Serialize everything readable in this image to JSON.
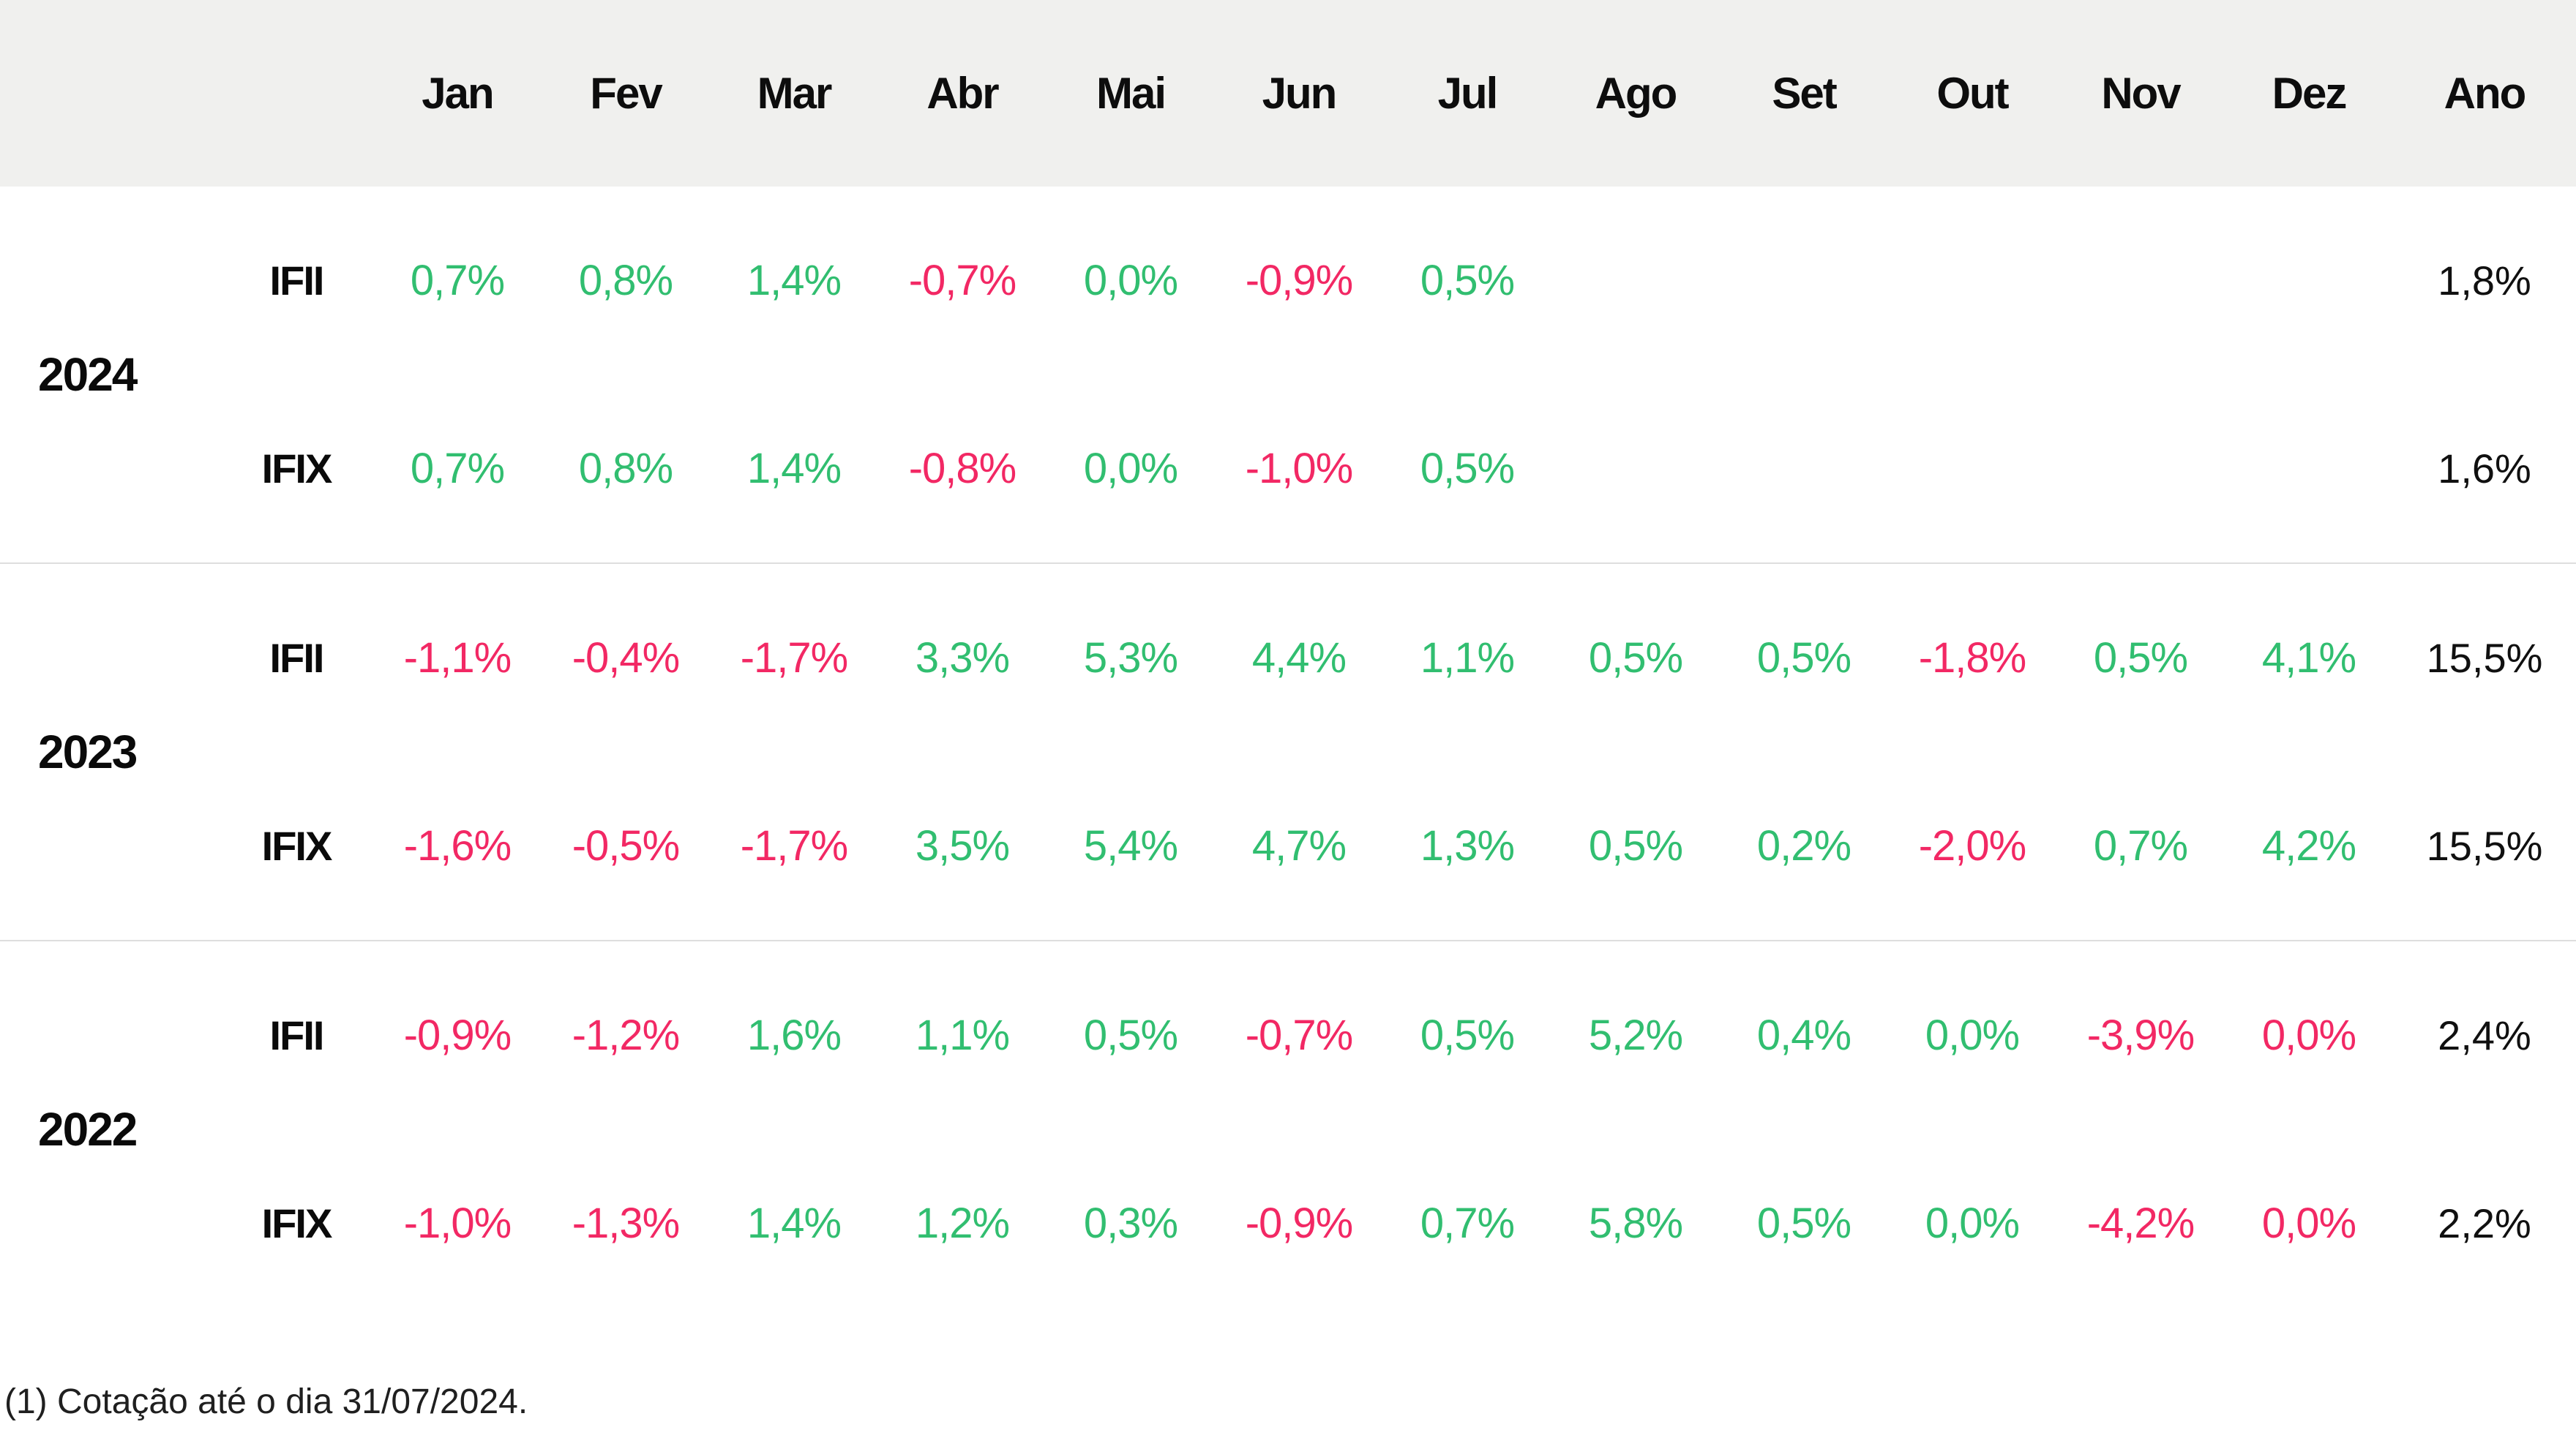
{
  "table": {
    "column_headers": [
      "Jan",
      "Fev",
      "Mar",
      "Abr",
      "Mai",
      "Jun",
      "Jul",
      "Ago",
      "Set",
      "Out",
      "Nov",
      "Dez",
      "Ano"
    ],
    "groups": [
      {
        "year": "2024",
        "rows": [
          {
            "index": "IFII",
            "cells": [
              {
                "text": "0,7%",
                "tone": "positive"
              },
              {
                "text": "0,8%",
                "tone": "positive"
              },
              {
                "text": "1,4%",
                "tone": "positive"
              },
              {
                "text": "-0,7%",
                "tone": "negative"
              },
              {
                "text": "0,0%",
                "tone": "positive"
              },
              {
                "text": "-0,9%",
                "tone": "negative"
              },
              {
                "text": "0,5%",
                "tone": "positive"
              },
              {
                "text": "",
                "tone": "none"
              },
              {
                "text": "",
                "tone": "none"
              },
              {
                "text": "",
                "tone": "none"
              },
              {
                "text": "",
                "tone": "none"
              },
              {
                "text": "",
                "tone": "none"
              }
            ],
            "annual": "1,8%"
          },
          {
            "index": "IFIX",
            "cells": [
              {
                "text": "0,7%",
                "tone": "positive"
              },
              {
                "text": "0,8%",
                "tone": "positive"
              },
              {
                "text": "1,4%",
                "tone": "positive"
              },
              {
                "text": "-0,8%",
                "tone": "negative"
              },
              {
                "text": "0,0%",
                "tone": "positive"
              },
              {
                "text": "-1,0%",
                "tone": "negative"
              },
              {
                "text": "0,5%",
                "tone": "positive"
              },
              {
                "text": "",
                "tone": "none"
              },
              {
                "text": "",
                "tone": "none"
              },
              {
                "text": "",
                "tone": "none"
              },
              {
                "text": "",
                "tone": "none"
              },
              {
                "text": "",
                "tone": "none"
              }
            ],
            "annual": "1,6%"
          }
        ]
      },
      {
        "year": "2023",
        "rows": [
          {
            "index": "IFII",
            "cells": [
              {
                "text": "-1,1%",
                "tone": "negative"
              },
              {
                "text": "-0,4%",
                "tone": "negative"
              },
              {
                "text": "-1,7%",
                "tone": "negative"
              },
              {
                "text": "3,3%",
                "tone": "positive"
              },
              {
                "text": "5,3%",
                "tone": "positive"
              },
              {
                "text": "4,4%",
                "tone": "positive"
              },
              {
                "text": "1,1%",
                "tone": "positive"
              },
              {
                "text": "0,5%",
                "tone": "positive"
              },
              {
                "text": "0,5%",
                "tone": "positive"
              },
              {
                "text": "-1,8%",
                "tone": "negative"
              },
              {
                "text": "0,5%",
                "tone": "positive"
              },
              {
                "text": "4,1%",
                "tone": "positive"
              }
            ],
            "annual": "15,5%"
          },
          {
            "index": "IFIX",
            "cells": [
              {
                "text": "-1,6%",
                "tone": "negative"
              },
              {
                "text": "-0,5%",
                "tone": "negative"
              },
              {
                "text": "-1,7%",
                "tone": "negative"
              },
              {
                "text": "3,5%",
                "tone": "positive"
              },
              {
                "text": "5,4%",
                "tone": "positive"
              },
              {
                "text": "4,7%",
                "tone": "positive"
              },
              {
                "text": "1,3%",
                "tone": "positive"
              },
              {
                "text": "0,5%",
                "tone": "positive"
              },
              {
                "text": "0,2%",
                "tone": "positive"
              },
              {
                "text": "-2,0%",
                "tone": "negative"
              },
              {
                "text": "0,7%",
                "tone": "positive"
              },
              {
                "text": "4,2%",
                "tone": "positive"
              }
            ],
            "annual": "15,5%"
          }
        ]
      },
      {
        "year": "2022",
        "rows": [
          {
            "index": "IFII",
            "cells": [
              {
                "text": "-0,9%",
                "tone": "negative"
              },
              {
                "text": "-1,2%",
                "tone": "negative"
              },
              {
                "text": "1,6%",
                "tone": "positive"
              },
              {
                "text": "1,1%",
                "tone": "positive"
              },
              {
                "text": "0,5%",
                "tone": "positive"
              },
              {
                "text": "-0,7%",
                "tone": "negative"
              },
              {
                "text": "0,5%",
                "tone": "positive"
              },
              {
                "text": "5,2%",
                "tone": "positive"
              },
              {
                "text": "0,4%",
                "tone": "positive"
              },
              {
                "text": "0,0%",
                "tone": "positive"
              },
              {
                "text": "-3,9%",
                "tone": "negative"
              },
              {
                "text": "0,0%",
                "tone": "negative"
              }
            ],
            "annual": "2,4%"
          },
          {
            "index": "IFIX",
            "cells": [
              {
                "text": "-1,0%",
                "tone": "negative"
              },
              {
                "text": "-1,3%",
                "tone": "negative"
              },
              {
                "text": "1,4%",
                "tone": "positive"
              },
              {
                "text": "1,2%",
                "tone": "positive"
              },
              {
                "text": "0,3%",
                "tone": "positive"
              },
              {
                "text": "-0,9%",
                "tone": "negative"
              },
              {
                "text": "0,7%",
                "tone": "positive"
              },
              {
                "text": "5,8%",
                "tone": "positive"
              },
              {
                "text": "0,5%",
                "tone": "positive"
              },
              {
                "text": "0,0%",
                "tone": "positive"
              },
              {
                "text": "-4,2%",
                "tone": "negative"
              },
              {
                "text": "0,0%",
                "tone": "negative"
              }
            ],
            "annual": "2,2%"
          }
        ]
      }
    ]
  },
  "footnote": "(1) Cotação até o dia 31/07/2024.",
  "colors": {
    "positive": "#31be70",
    "negative": "#f22864",
    "header_background": "#f0f0ee",
    "divider": "#dedede",
    "text": "#0d0d0d"
  },
  "chart_data": {
    "type": "table",
    "columns": [
      "Jan",
      "Fev",
      "Mar",
      "Abr",
      "Mai",
      "Jun",
      "Jul",
      "Ago",
      "Set",
      "Out",
      "Nov",
      "Dez",
      "Ano"
    ],
    "rows": [
      {
        "year": 2024,
        "index": "IFII",
        "monthly_pct": [
          0.7,
          0.8,
          1.4,
          -0.7,
          0.0,
          -0.9,
          0.5,
          null,
          null,
          null,
          null,
          null
        ],
        "annual_pct": 1.8
      },
      {
        "year": 2024,
        "index": "IFIX",
        "monthly_pct": [
          0.7,
          0.8,
          1.4,
          -0.8,
          0.0,
          -1.0,
          0.5,
          null,
          null,
          null,
          null,
          null
        ],
        "annual_pct": 1.6
      },
      {
        "year": 2023,
        "index": "IFII",
        "monthly_pct": [
          -1.1,
          -0.4,
          -1.7,
          3.3,
          5.3,
          4.4,
          1.1,
          0.5,
          0.5,
          -1.8,
          0.5,
          4.1
        ],
        "annual_pct": 15.5
      },
      {
        "year": 2023,
        "index": "IFIX",
        "monthly_pct": [
          -1.6,
          -0.5,
          -1.7,
          3.5,
          5.4,
          4.7,
          1.3,
          0.5,
          0.2,
          -2.0,
          0.7,
          4.2
        ],
        "annual_pct": 15.5
      },
      {
        "year": 2022,
        "index": "IFII",
        "monthly_pct": [
          -0.9,
          -1.2,
          1.6,
          1.1,
          0.5,
          -0.7,
          0.5,
          5.2,
          0.4,
          0.0,
          -3.9,
          0.0
        ],
        "annual_pct": 2.4
      },
      {
        "year": 2022,
        "index": "IFIX",
        "monthly_pct": [
          -1.0,
          -1.3,
          1.4,
          1.2,
          0.3,
          -0.9,
          0.7,
          5.8,
          0.5,
          0.0,
          -4.2,
          0.0
        ],
        "annual_pct": 2.2
      }
    ],
    "annotations": "(1) Cotação até o dia 31/07/2024."
  }
}
